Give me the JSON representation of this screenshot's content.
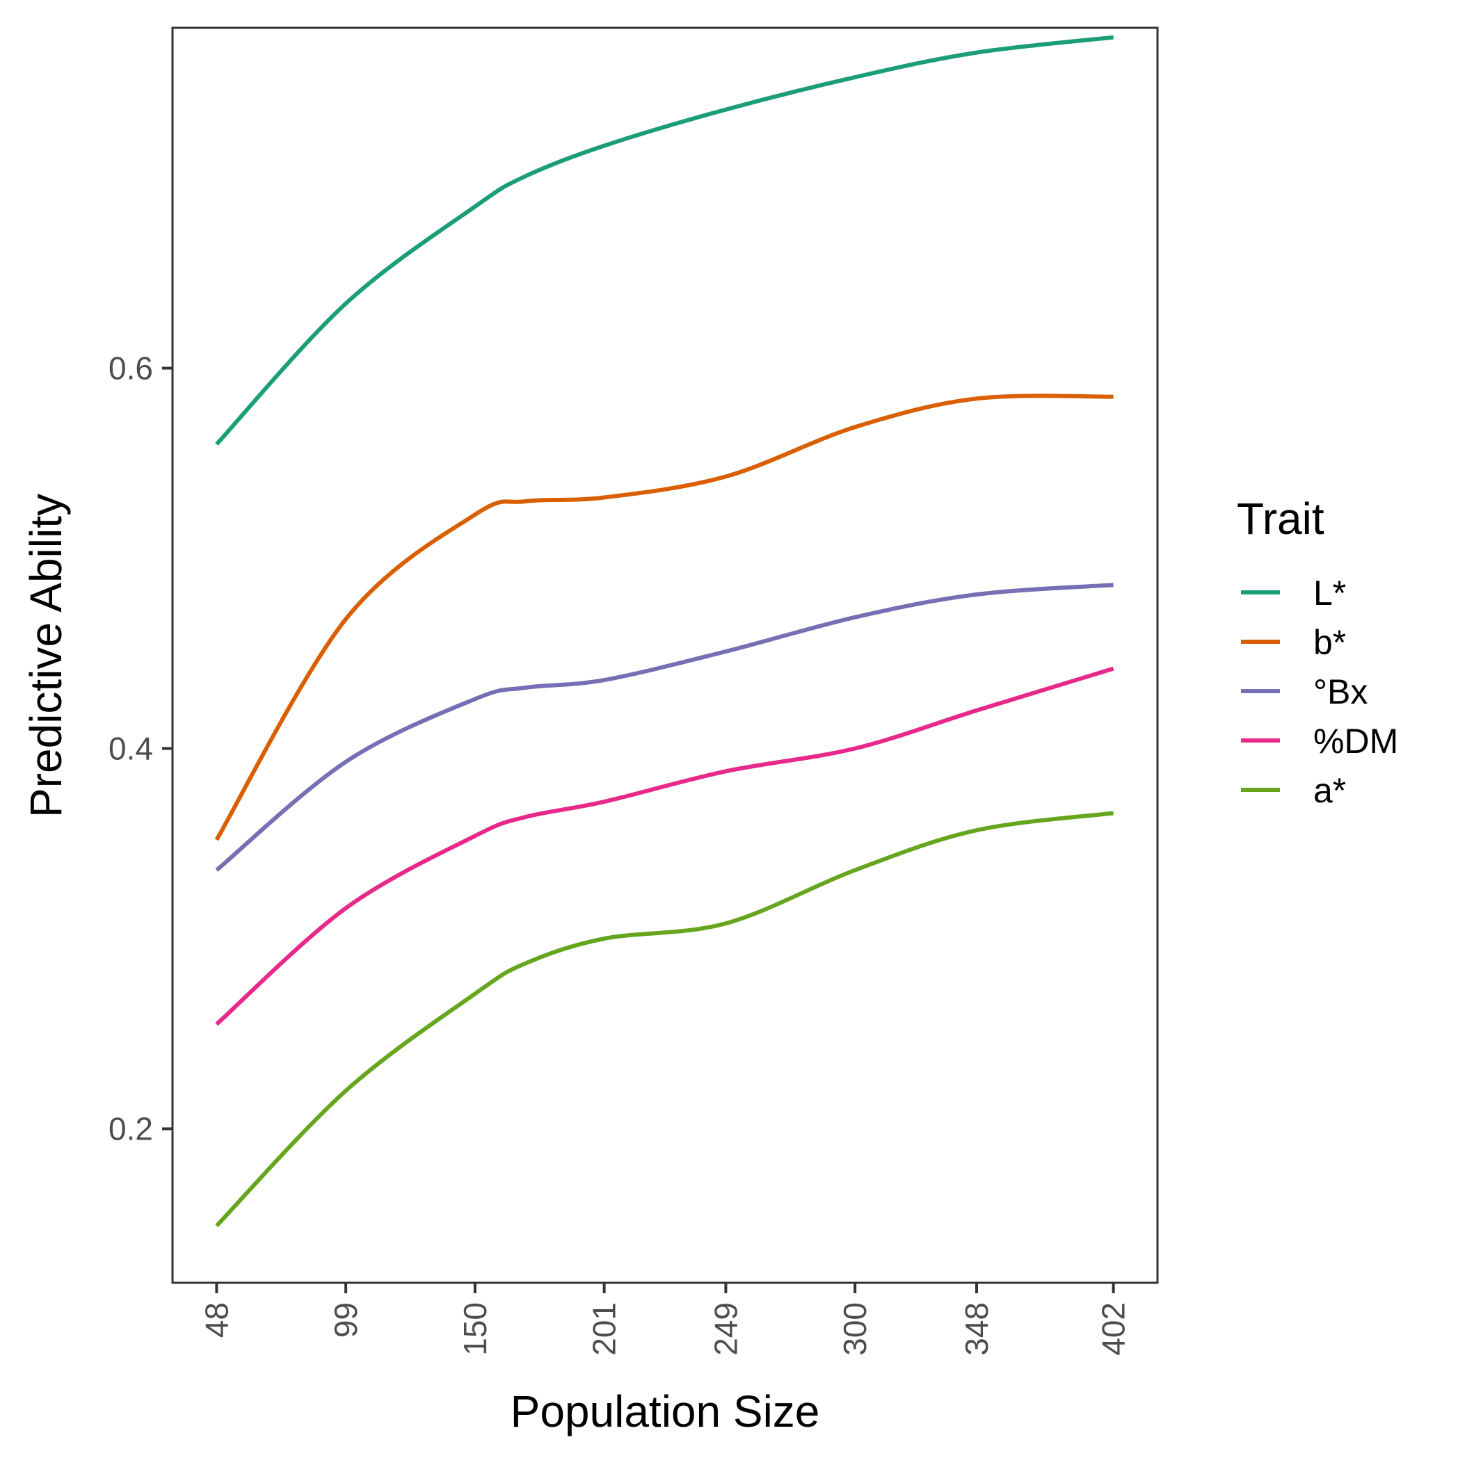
{
  "chart_data": {
    "type": "line",
    "xlabel": "Population Size",
    "ylabel": "Predictive Ability",
    "x_tick_labels": [
      "48",
      "99",
      "150",
      "201",
      "249",
      "300",
      "348",
      "402"
    ],
    "y_tick_labels": [
      "0.2",
      "0.4",
      "0.6"
    ],
    "y_ticks": [
      0.2,
      0.4,
      0.6
    ],
    "xlim": [
      30.6,
      419.4
    ],
    "ylim": [
      0.119,
      0.779
    ],
    "x": [
      48,
      99,
      150,
      170,
      201,
      249,
      300,
      348,
      402
    ],
    "series": [
      {
        "name": "L*",
        "color": "#1B9E77",
        "values": [
          0.56,
          0.634,
          0.685,
          0.701,
          0.717,
          0.736,
          0.753,
          0.766,
          0.774
        ]
      },
      {
        "name": "b*",
        "color": "#D95F02",
        "values": [
          0.352,
          0.468,
          0.523,
          0.53,
          0.532,
          0.543,
          0.569,
          0.584,
          0.585
        ]
      },
      {
        "name": "°Bx",
        "color": "#7570B3",
        "values": [
          0.336,
          0.393,
          0.426,
          0.432,
          0.436,
          0.451,
          0.469,
          0.481,
          0.486
        ]
      },
      {
        "name": "%DM",
        "color": "#E7298A",
        "values": [
          0.255,
          0.316,
          0.354,
          0.364,
          0.372,
          0.388,
          0.4,
          0.42,
          0.442
        ]
      },
      {
        "name": "a*",
        "color": "#66A61E",
        "values": [
          0.149,
          0.22,
          0.271,
          0.287,
          0.3,
          0.308,
          0.336,
          0.357,
          0.366
        ]
      }
    ],
    "legend": {
      "title": "Trait",
      "position": "right"
    },
    "grid": false
  }
}
